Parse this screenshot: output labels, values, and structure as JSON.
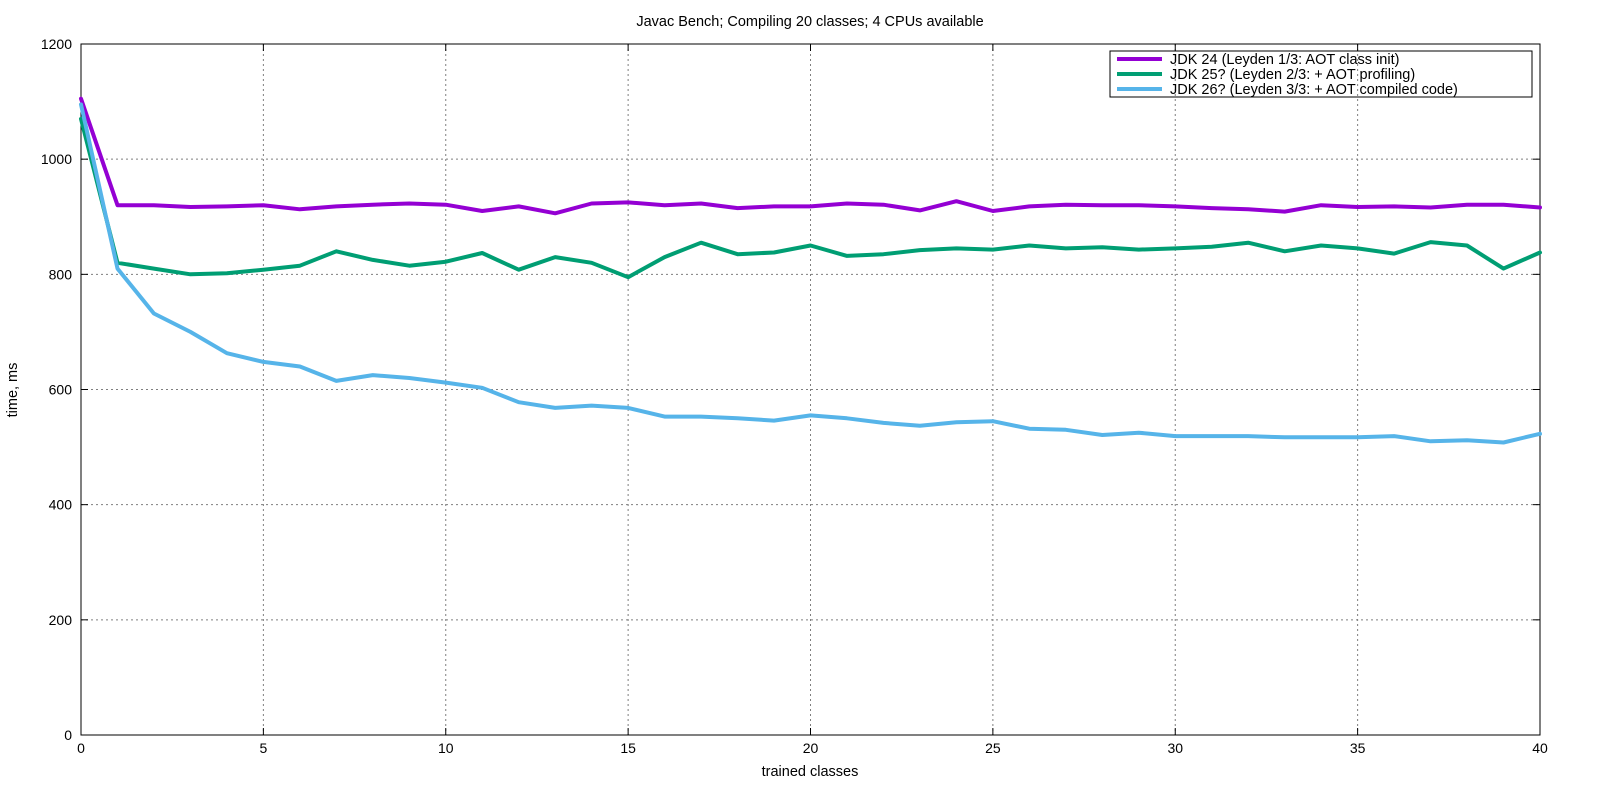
{
  "chart_data": {
    "type": "line",
    "title": "Javac Bench; Compiling 20 classes; 4 CPUs available",
    "xlabel": "trained classes",
    "ylabel": "time, ms",
    "xlim": [
      0,
      40
    ],
    "ylim": [
      0,
      1200
    ],
    "xticks": [
      0,
      5,
      10,
      15,
      20,
      25,
      30,
      35,
      40
    ],
    "yticks": [
      0,
      200,
      400,
      600,
      800,
      1000,
      1200
    ],
    "grid": true,
    "legend_position": "top-right",
    "x": [
      0,
      1,
      2,
      3,
      4,
      5,
      6,
      7,
      8,
      9,
      10,
      11,
      12,
      13,
      14,
      15,
      16,
      17,
      18,
      19,
      20,
      21,
      22,
      23,
      24,
      25,
      26,
      27,
      28,
      29,
      30,
      31,
      32,
      33,
      34,
      35,
      36,
      37,
      38,
      39,
      40
    ],
    "series": [
      {
        "name": "JDK 24 (Leyden 1/3: AOT class init)",
        "color": "#9400d3",
        "values": [
          1105,
          920,
          920,
          917,
          918,
          920,
          913,
          918,
          921,
          923,
          921,
          910,
          918,
          906,
          923,
          925,
          920,
          923,
          915,
          918,
          918,
          923,
          921,
          911,
          927,
          910,
          918,
          921,
          920,
          920,
          918,
          915,
          913,
          909,
          920,
          917,
          918,
          916,
          921,
          921,
          916
        ]
      },
      {
        "name": "JDK 25? (Leyden 2/3: + AOT profiling)",
        "color": "#009e73",
        "values": [
          1070,
          820,
          810,
          800,
          802,
          808,
          815,
          840,
          825,
          815,
          822,
          837,
          808,
          830,
          820,
          795,
          830,
          855,
          835,
          838,
          850,
          832,
          835,
          842,
          845,
          843,
          850,
          845,
          847,
          843,
          845,
          848,
          855,
          840,
          850,
          845,
          836,
          856,
          850,
          810,
          838
        ]
      },
      {
        "name": "JDK 26? (Leyden 3/3: + AOT compiled code)",
        "color": "#56b4e9",
        "values": [
          1095,
          810,
          732,
          700,
          663,
          648,
          640,
          615,
          625,
          620,
          612,
          603,
          578,
          568,
          572,
          568,
          553,
          553,
          550,
          546,
          555,
          550,
          542,
          537,
          543,
          545,
          532,
          530,
          521,
          525,
          519,
          519,
          519,
          517,
          517,
          517,
          519,
          510,
          512,
          508,
          523
        ]
      }
    ]
  }
}
